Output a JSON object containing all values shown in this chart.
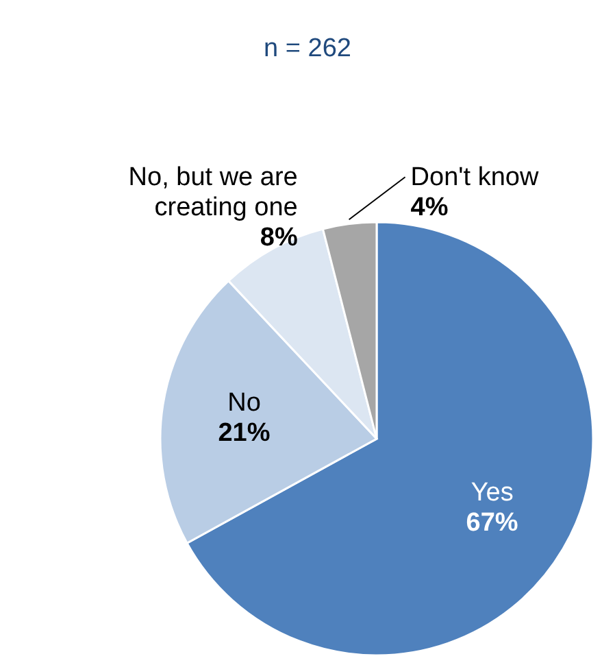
{
  "chart_data": {
    "type": "pie",
    "title": "n = 262",
    "categories": [
      "Yes",
      "No",
      "No, but we are creating one",
      "Don't know"
    ],
    "values": [
      67,
      21,
      8,
      4
    ],
    "colors": [
      "#4f81bd",
      "#b9cde5",
      "#dce6f2",
      "#a6a6a6"
    ],
    "value_labels": [
      "67%",
      "21%",
      "8%",
      "4%"
    ],
    "legend": false
  }
}
